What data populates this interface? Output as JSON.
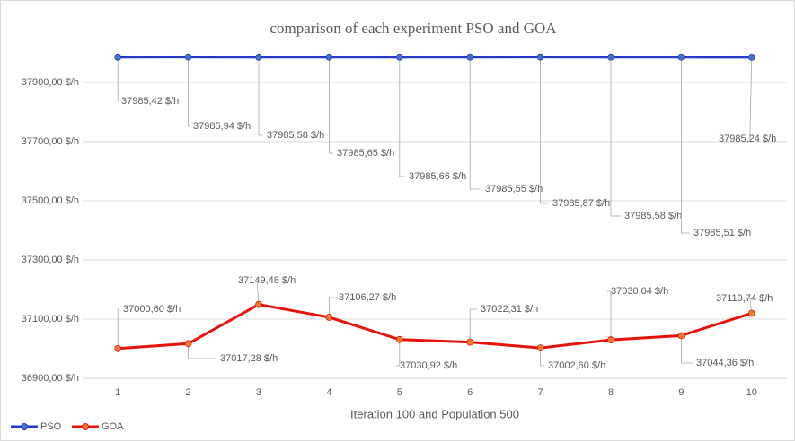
{
  "chart_data": {
    "type": "line",
    "title": "comparison of each experiment PSO and GOA",
    "x_label": "Iteration 100 and Population 500",
    "categories": [
      "1",
      "2",
      "3",
      "4",
      "5",
      "6",
      "7",
      "8",
      "9",
      "10"
    ],
    "series": [
      {
        "name": "PSO",
        "color": "#2338c8",
        "marker_color": "#4472c4",
        "values": [
          37985.42,
          37985.94,
          37985.58,
          37985.65,
          37985.66,
          37985.55,
          37985.87,
          37985.58,
          37985.51,
          37985.24
        ],
        "value_labels": [
          "37985,42 $/h",
          "37985,94 $/h",
          "37985,58 $/h",
          "37985,65 $/h",
          "37985,66 $/h",
          "37985,55 $/h",
          "37985,87 $/h",
          "37985,58 $/h",
          "37985,51 $/h",
          "37985,24 $/h"
        ]
      },
      {
        "name": "GOA",
        "color": "#e8120c",
        "marker_color": "#ed7d31",
        "values": [
          37000.6,
          37017.28,
          37149.48,
          37106.27,
          37030.92,
          37022.31,
          37002.6,
          37030.04,
          37044.36,
          37119.74
        ],
        "value_labels": [
          "37000,60 $/h",
          "37017,28 $/h",
          "37149,48 $/h",
          "37106,27 $/h",
          "37030,92 $/h",
          "37022,31 $/h",
          "37002,60 $/h",
          "37030,04 $/h",
          "37044,36 $/h",
          "37119,74 $/h"
        ]
      }
    ],
    "ylim": [
      36900,
      38000
    ],
    "yticks": [
      {
        "value": 36900,
        "label": "36900,00 $/h"
      },
      {
        "value": 37100,
        "label": "37100,00 $/h"
      },
      {
        "value": 37300,
        "label": "37300,00 $/h"
      },
      {
        "value": 37500,
        "label": "37500,00 $/h"
      },
      {
        "value": 37700,
        "label": "37700,00 $/h"
      },
      {
        "value": 37900,
        "label": "37900,00 $/h"
      }
    ],
    "grid": true,
    "legend": "bottom-left"
  }
}
